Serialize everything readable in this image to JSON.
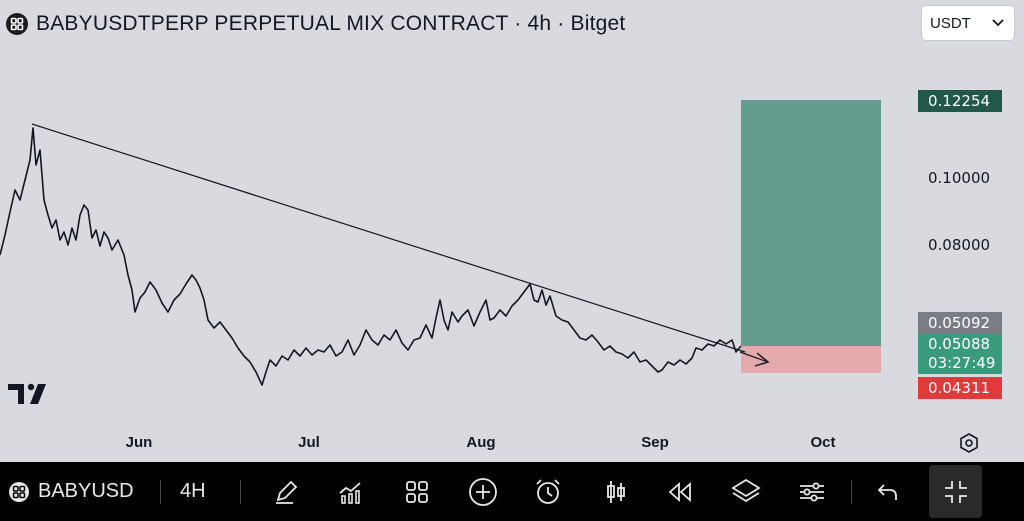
{
  "header": {
    "title": "BABYUSDTPERP PERPETUAL MIX CONTRACT · 4h · Bitget",
    "currency": "USDT"
  },
  "price_axis": {
    "ticks": [
      "0.10000",
      "0.08000"
    ],
    "labels": {
      "target": "0.12254",
      "entry": "0.05092",
      "last_price": "0.05088",
      "countdown": "03:27:49",
      "stop": "0.04311"
    }
  },
  "time_axis": {
    "months": [
      "Jun",
      "Jul",
      "Aug",
      "Sep",
      "Oct"
    ]
  },
  "colors": {
    "background": "#d9dadf",
    "profit_zone": "#5b9686",
    "loss_zone": "#e3a9ad",
    "candle": "#131722",
    "toolbar": "#000000"
  },
  "toolbar": {
    "symbol": "BABYUSD",
    "interval": "4H",
    "icons": [
      "pencil-icon",
      "indicators-icon",
      "layout-grid-icon",
      "add-icon",
      "alarm-icon",
      "candles-icon",
      "replay-icon",
      "layers-icon",
      "settings-sliders-icon",
      "undo-icon",
      "collapse-icon"
    ]
  }
}
